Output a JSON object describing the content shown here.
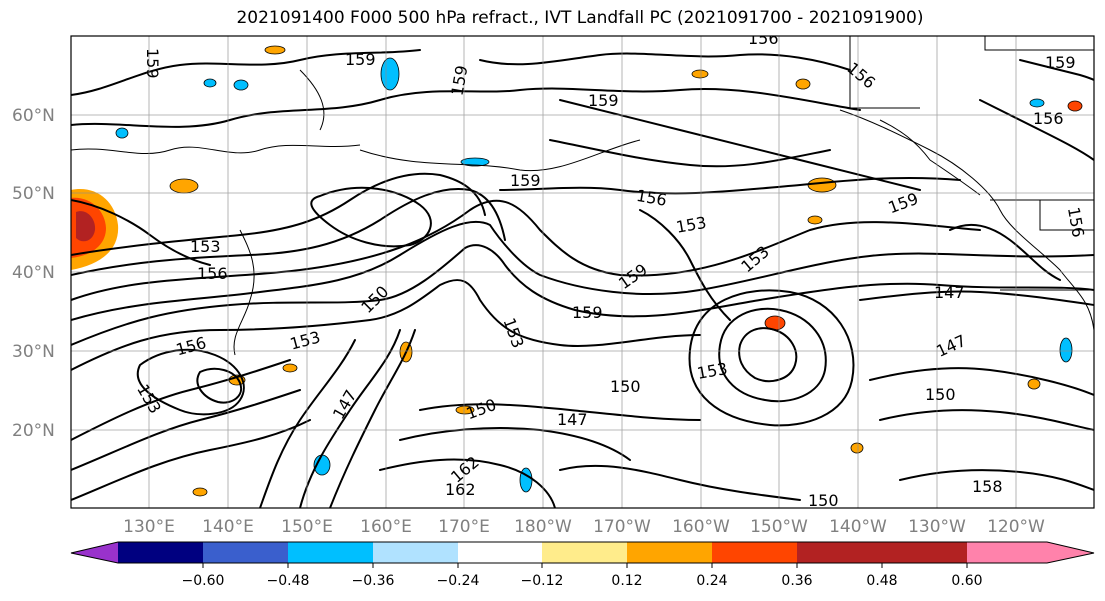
{
  "title": "2021091400 F000 500 hPa refract., IVT Landfall PC (2021091700 - 2021091900)",
  "lat_labels": [
    "60°N",
    "50°N",
    "40°N",
    "30°N",
    "20°N"
  ],
  "lon_labels": [
    "130°E",
    "140°E",
    "150°E",
    "160°E",
    "170°E",
    "180°W",
    "170°W",
    "160°W",
    "150°W",
    "140°W",
    "130°W",
    "120°W"
  ],
  "colorbar": {
    "ticks": [
      "−0.60",
      "−0.48",
      "−0.36",
      "−0.24",
      "−0.12",
      "0.12",
      "0.24",
      "0.36",
      "0.48",
      "0.60"
    ],
    "colors": [
      "#9932CC",
      "#000080",
      "#3A5FCD",
      "#00BFFF",
      "#B0E2FF",
      "#FFFFFF",
      "#FFEC8B",
      "#FFA500",
      "#FF4500",
      "#B22222",
      "#FF82AB"
    ]
  },
  "contour_labels": [
    {
      "text": "159"
    },
    {
      "text": "159"
    },
    {
      "text": "159"
    },
    {
      "text": "156"
    },
    {
      "text": "159"
    },
    {
      "text": "156"
    },
    {
      "text": "159"
    },
    {
      "text": "156"
    },
    {
      "text": "153"
    },
    {
      "text": "159"
    },
    {
      "text": "156"
    },
    {
      "text": "159"
    },
    {
      "text": "153"
    },
    {
      "text": "156"
    },
    {
      "text": "153"
    },
    {
      "text": "150"
    },
    {
      "text": "156"
    },
    {
      "text": "153"
    },
    {
      "text": "159"
    },
    {
      "text": "159"
    },
    {
      "text": "153"
    },
    {
      "text": "150"
    },
    {
      "text": "153"
    },
    {
      "text": "147"
    },
    {
      "text": "150"
    },
    {
      "text": "147"
    },
    {
      "text": "150"
    },
    {
      "text": "147"
    },
    {
      "text": "162"
    },
    {
      "text": "162"
    },
    {
      "text": "150"
    },
    {
      "text": "158"
    },
    {
      "text": "147"
    },
    {
      "text": "156"
    },
    {
      "text": "153"
    }
  ]
}
